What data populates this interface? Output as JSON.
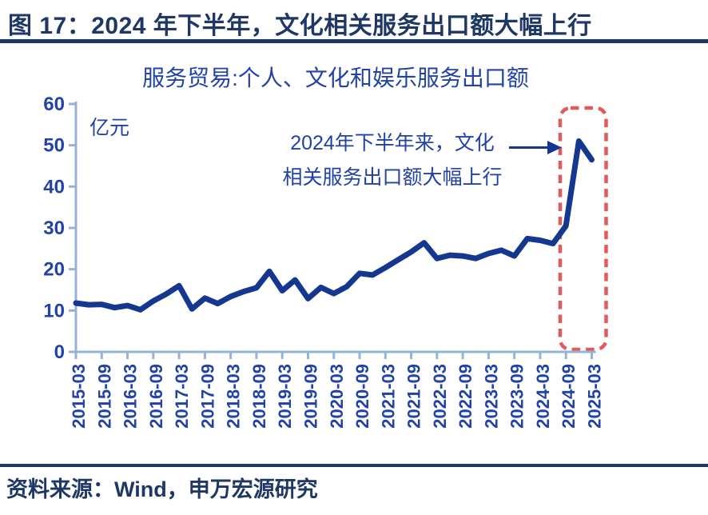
{
  "header": {
    "title": "图 17：2024 年下半年，文化相关服务出口额大幅上行"
  },
  "chart": {
    "title": "服务贸易:个人、文化和娱乐服务出口额",
    "unit_label": "亿元",
    "annotation": {
      "line1": "2024年下半年来，文化",
      "line2": "相关服务出口额大幅上行"
    }
  },
  "footer": {
    "source": "资料来源：Wind，申万宏源研究"
  },
  "colors": {
    "title_navy": "#1E3765",
    "label_blue": "#2142A6",
    "line_blue": "#16378F",
    "axis_light_blue": "#95B3D7",
    "highlight_red": "#E25B5B"
  },
  "chart_data": {
    "type": "line",
    "title": "服务贸易:个人、文化和娱乐服务出口额",
    "ylabel": "亿元",
    "ylim": [
      0,
      60
    ],
    "ytick_step": 10,
    "x_tick_every": 2,
    "grid": false,
    "legend": "none",
    "annotation_text": "2024年下半年来，文化相关服务出口额大幅上行",
    "highlight_box_range": [
      "2024-09",
      "2025-03"
    ],
    "x": [
      "2015-03",
      "2015-06",
      "2015-09",
      "2015-12",
      "2016-03",
      "2016-06",
      "2016-09",
      "2016-12",
      "2017-03",
      "2017-06",
      "2017-09",
      "2017-12",
      "2018-03",
      "2018-06",
      "2018-09",
      "2018-12",
      "2019-03",
      "2019-06",
      "2019-09",
      "2019-12",
      "2020-03",
      "2020-06",
      "2020-09",
      "2020-12",
      "2021-03",
      "2021-06",
      "2021-09",
      "2021-12",
      "2022-03",
      "2022-06",
      "2022-09",
      "2022-12",
      "2023-03",
      "2023-06",
      "2023-09",
      "2023-12",
      "2024-03",
      "2024-06",
      "2024-09",
      "2024-12",
      "2025-03"
    ],
    "values": [
      11.8,
      11.4,
      11.5,
      10.7,
      11.2,
      10.2,
      12.3,
      14.0,
      16.0,
      10.4,
      13.0,
      11.7,
      13.4,
      14.6,
      15.5,
      19.5,
      14.8,
      17.4,
      12.9,
      15.6,
      14.1,
      15.8,
      19.0,
      18.6,
      20.4,
      22.3,
      24.2,
      26.4,
      22.6,
      23.4,
      23.2,
      22.6,
      23.8,
      24.6,
      23.2,
      27.4,
      27.0,
      26.2,
      30.5,
      51.0,
      46.5
    ]
  }
}
